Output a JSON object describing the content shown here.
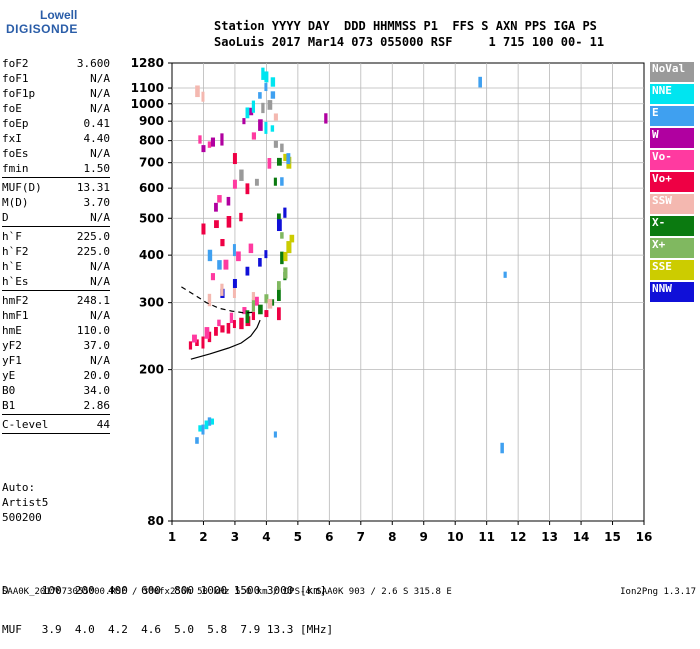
{
  "logo": {
    "line1": "Lowell",
    "line2": "DIGISONDE"
  },
  "header": {
    "labels": "Station YYYY DAY  DDD HHMMSS P1  FFS S AXN PPS IGA PS",
    "values": "SaoLuis 2017 Mar14 073 055000 RSF     1 715 100 00- 11"
  },
  "params": [
    {
      "name": "foF2",
      "value": "3.600"
    },
    {
      "name": "foF1",
      "value": "N/A"
    },
    {
      "name": "foF1p",
      "value": "N/A"
    },
    {
      "name": "foE",
      "value": "N/A"
    },
    {
      "name": "foEp",
      "value": "0.41"
    },
    {
      "name": "fxI",
      "value": "4.40"
    },
    {
      "name": "foEs",
      "value": "N/A"
    },
    {
      "name": "fmin",
      "value": "1.50",
      "sep": true
    },
    {
      "name": "MUF(D)",
      "value": "13.31"
    },
    {
      "name": "M(D)",
      "value": "3.70"
    },
    {
      "name": "D",
      "value": "N/A",
      "sep": true
    },
    {
      "name": "h`F",
      "value": "225.0"
    },
    {
      "name": "h`F2",
      "value": "225.0"
    },
    {
      "name": "h`E",
      "value": "N/A"
    },
    {
      "name": "h`Es",
      "value": "N/A",
      "sep": true
    },
    {
      "name": "hmF2",
      "value": "248.1"
    },
    {
      "name": "hmF1",
      "value": "N/A"
    },
    {
      "name": "hmE",
      "value": "110.0"
    },
    {
      "name": "yF2",
      "value": "37.0"
    },
    {
      "name": "yF1",
      "value": "N/A"
    },
    {
      "name": "yE",
      "value": "20.0"
    },
    {
      "name": "B0",
      "value": "34.0"
    },
    {
      "name": "B1",
      "value": "2.86",
      "sep": true
    },
    {
      "name": "C-level",
      "value": "44",
      "sep": true
    }
  ],
  "auto": {
    "line1": "Auto:",
    "line2": "Artist5",
    "line3": "500200"
  },
  "muf_table": {
    "d_row": "D     100  200  400  600  800 1000 1500 3000 [km]",
    "muf_row": "MUF   3.9  4.0  4.2  4.6  5.0  5.8  7.9 13.3 [MHz]"
  },
  "footer": {
    "left": "SAA0K_2017073055000.RSF / 300fx256h 50 kHz 5.0 km / DPS-4 SAA0K 903 / 2.6 S 315.8 E",
    "right": "Ion2Png 1.3.17"
  },
  "legend": [
    {
      "label": "NoVal",
      "color": "#9a9a9a"
    },
    {
      "label": "NNE",
      "color": "#00e5f0"
    },
    {
      "label": "E",
      "color": "#3fa0f0"
    },
    {
      "label": "W",
      "color": "#b000a0"
    },
    {
      "label": "Vo-",
      "color": "#ff3aa0"
    },
    {
      "label": "Vo+",
      "color": "#ee0044"
    },
    {
      "label": "SSW",
      "color": "#f4b8b0"
    },
    {
      "label": "X-",
      "color": "#0b7a10"
    },
    {
      "label": "X+",
      "color": "#80b860"
    },
    {
      "label": "SSE",
      "color": "#cccc00"
    },
    {
      "label": "NNW",
      "color": "#1010d8"
    }
  ],
  "chart_data": {
    "type": "scatter",
    "xlim": [
      1,
      16
    ],
    "ylim": [
      80,
      1280
    ],
    "x_ticks": [
      1,
      2,
      3,
      4,
      5,
      6,
      7,
      8,
      9,
      10,
      11,
      12,
      13,
      14,
      15,
      16
    ],
    "y_ticks": [
      80,
      200,
      300,
      400,
      500,
      600,
      700,
      800,
      900,
      1000,
      1100,
      1280
    ],
    "y_scale": "log",
    "grid": true,
    "series": [
      {
        "name": "Vo+",
        "color": "#ee0044",
        "points": [
          [
            1.6,
            230
          ],
          [
            1.8,
            235
          ],
          [
            2.0,
            240
          ],
          [
            2.2,
            245
          ],
          [
            2.4,
            250
          ],
          [
            2.6,
            255
          ],
          [
            2.8,
            258
          ],
          [
            3.0,
            262
          ],
          [
            3.2,
            265
          ],
          [
            3.4,
            270
          ],
          [
            3.6,
            275
          ],
          [
            4.0,
            280
          ],
          [
            4.4,
            285
          ],
          [
            2.0,
            470
          ],
          [
            2.4,
            480
          ],
          [
            2.8,
            490
          ],
          [
            3.2,
            500
          ],
          [
            2.6,
            430
          ],
          [
            3.0,
            720
          ],
          [
            3.4,
            600
          ]
        ]
      },
      {
        "name": "Vo-",
        "color": "#ff3aa0",
        "points": [
          [
            1.7,
            240
          ],
          [
            2.1,
            250
          ],
          [
            2.5,
            265
          ],
          [
            2.9,
            275
          ],
          [
            3.3,
            285
          ],
          [
            3.7,
            300
          ],
          [
            2.3,
            350
          ],
          [
            2.7,
            380
          ],
          [
            3.1,
            400
          ],
          [
            3.5,
            420
          ],
          [
            1.9,
            800
          ],
          [
            2.2,
            780
          ],
          [
            3.6,
            820
          ],
          [
            4.1,
            700
          ],
          [
            2.5,
            560
          ],
          [
            3.0,
            620
          ]
        ]
      },
      {
        "name": "W",
        "color": "#b000a0",
        "points": [
          [
            2.0,
            760
          ],
          [
            2.3,
            800
          ],
          [
            2.6,
            820
          ],
          [
            3.3,
            900
          ],
          [
            3.5,
            950
          ],
          [
            3.8,
            880
          ],
          [
            5.9,
            920
          ],
          [
            2.4,
            530
          ],
          [
            2.8,
            550
          ]
        ]
      },
      {
        "name": "X-",
        "color": "#0b7a10",
        "points": [
          [
            3.4,
            280
          ],
          [
            3.8,
            290
          ],
          [
            4.2,
            300
          ],
          [
            4.4,
            320
          ],
          [
            4.6,
            350
          ],
          [
            4.5,
            400
          ],
          [
            4.4,
            500
          ],
          [
            4.3,
            620
          ],
          [
            4.4,
            700
          ]
        ]
      },
      {
        "name": "X+",
        "color": "#80b860",
        "points": [
          [
            3.6,
            300
          ],
          [
            4.0,
            310
          ],
          [
            4.4,
            330
          ],
          [
            4.6,
            360
          ],
          [
            4.7,
            420
          ],
          [
            4.5,
            450
          ]
        ]
      },
      {
        "name": "SSE",
        "color": "#cccc00",
        "points": [
          [
            4.6,
            400
          ],
          [
            4.7,
            420
          ],
          [
            4.8,
            440
          ],
          [
            4.7,
            700
          ],
          [
            4.6,
            720
          ]
        ]
      },
      {
        "name": "NNW",
        "color": "#1010d8",
        "points": [
          [
            2.6,
            320
          ],
          [
            3.0,
            340
          ],
          [
            3.4,
            360
          ],
          [
            3.8,
            380
          ],
          [
            4.0,
            400
          ],
          [
            4.4,
            480
          ],
          [
            4.6,
            520
          ]
        ]
      },
      {
        "name": "E",
        "color": "#3fa0f0",
        "points": [
          [
            2.2,
            400
          ],
          [
            2.5,
            380
          ],
          [
            3.0,
            420
          ],
          [
            3.8,
            1050
          ],
          [
            4.0,
            1100
          ],
          [
            4.2,
            1050
          ],
          [
            2.0,
            140
          ],
          [
            2.2,
            145
          ],
          [
            1.8,
            130
          ],
          [
            4.3,
            135
          ],
          [
            4.5,
            620
          ],
          [
            4.7,
            720
          ],
          [
            10.8,
            1145
          ],
          [
            11.6,
            355
          ],
          [
            11.5,
            125
          ]
        ]
      },
      {
        "name": "NNE",
        "color": "#00e5f0",
        "points": [
          [
            1.9,
            140
          ],
          [
            2.1,
            142
          ],
          [
            2.3,
            146
          ],
          [
            3.4,
            950
          ],
          [
            3.6,
            1000
          ],
          [
            3.9,
            1220
          ],
          [
            4.0,
            1180
          ],
          [
            4.2,
            1150
          ],
          [
            4.0,
            880
          ],
          [
            4.2,
            860
          ]
        ]
      },
      {
        "name": "SSW",
        "color": "#f4b8b0",
        "points": [
          [
            2.2,
            310
          ],
          [
            2.6,
            330
          ],
          [
            3.0,
            320
          ],
          [
            3.6,
            310
          ],
          [
            4.1,
            300
          ],
          [
            1.8,
            1080
          ],
          [
            2.0,
            1050
          ],
          [
            4.3,
            920
          ]
        ]
      },
      {
        "name": "NoVal",
        "color": "#9a9a9a",
        "points": [
          [
            3.9,
            980
          ],
          [
            4.1,
            1000
          ],
          [
            4.3,
            780
          ],
          [
            4.5,
            760
          ],
          [
            3.7,
            620
          ],
          [
            3.2,
            650
          ]
        ]
      }
    ],
    "curves": [
      {
        "name": "profile",
        "style": "solid",
        "points": [
          [
            1.6,
            213
          ],
          [
            2.2,
            220
          ],
          [
            2.8,
            228
          ],
          [
            3.2,
            235
          ],
          [
            3.5,
            245
          ],
          [
            3.7,
            258
          ],
          [
            3.8,
            270
          ]
        ]
      },
      {
        "name": "model",
        "style": "dashed",
        "points": [
          [
            1.3,
            330
          ],
          [
            1.7,
            315
          ],
          [
            2.1,
            300
          ],
          [
            2.5,
            290
          ],
          [
            2.9,
            285
          ],
          [
            3.3,
            282
          ],
          [
            3.6,
            283
          ]
        ]
      }
    ]
  }
}
